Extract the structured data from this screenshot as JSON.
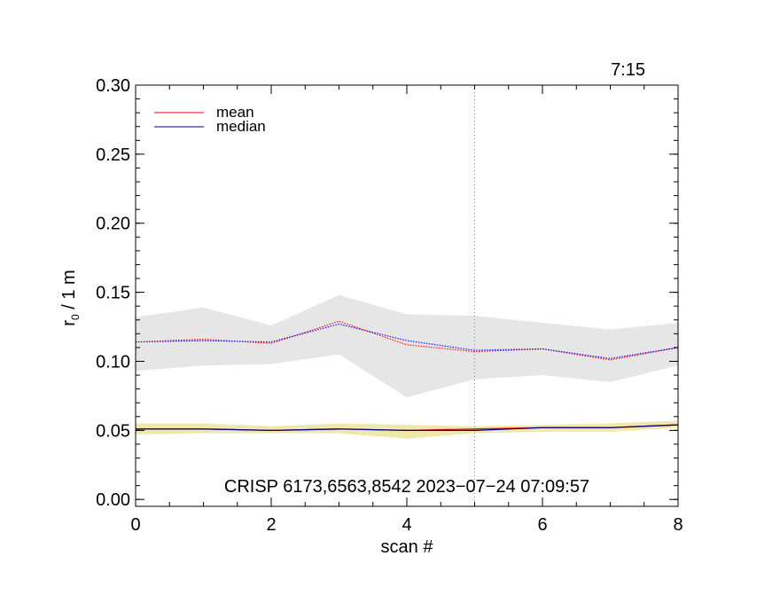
{
  "chart_data": {
    "type": "line",
    "corner_label": "7:15",
    "annotation": "CRISP 6173,6563,8542 2023−07−24 07:09:57",
    "xlabel": "scan #",
    "ylabel_main": "r",
    "ylabel_sub": "0",
    "ylabel_rest": " / 1 m",
    "xlim": [
      0,
      8
    ],
    "ylim": [
      -0.005,
      0.3
    ],
    "xticks": [
      0,
      2,
      4,
      6,
      8
    ],
    "xtick_labels": [
      "0",
      "2",
      "4",
      "6",
      "8"
    ],
    "yticks": [
      0.0,
      0.05,
      0.1,
      0.15,
      0.2,
      0.25,
      0.3
    ],
    "ytick_labels": [
      "0.00",
      "0.05",
      "0.10",
      "0.15",
      "0.20",
      "0.25",
      "0.30"
    ],
    "x_minor_step": 0.5,
    "y_minor_step": 0.01,
    "vline_x": 5,
    "grid": false,
    "legend_position": "top-left",
    "legend": [
      {
        "label": "mean",
        "color": "#ff0000"
      },
      {
        "label": "median",
        "color": "#00008b"
      }
    ],
    "x": [
      0,
      1,
      2,
      3,
      4,
      5,
      6,
      7,
      8
    ],
    "bands": [
      {
        "color": "#e6e6e6",
        "low": [
          0.093,
          0.097,
          0.098,
          0.105,
          0.074,
          0.087,
          0.09,
          0.085,
          0.097
        ],
        "high": [
          0.132,
          0.139,
          0.126,
          0.148,
          0.134,
          0.133,
          0.128,
          0.123,
          0.128
        ]
      },
      {
        "color": "#eee8aa",
        "low": [
          0.047,
          0.048,
          0.048,
          0.048,
          0.044,
          0.048,
          0.049,
          0.049,
          0.052
        ],
        "high": [
          0.055,
          0.055,
          0.053,
          0.055,
          0.054,
          0.053,
          0.054,
          0.055,
          0.057
        ]
      }
    ],
    "series": [
      {
        "name": "mean",
        "color": "#ff0000",
        "style": "dotted",
        "values": [
          0.114,
          0.116,
          0.113,
          0.129,
          0.112,
          0.107,
          0.109,
          0.101,
          0.11
        ]
      },
      {
        "name": "median",
        "color": "#0000ff",
        "style": "dotted",
        "values": [
          0.114,
          0.115,
          0.114,
          0.127,
          0.115,
          0.108,
          0.109,
          0.102,
          0.11
        ]
      },
      {
        "name": "mean",
        "color": "#ff0000",
        "style": "solid",
        "values": [
          0.051,
          0.051,
          0.05,
          0.051,
          0.05,
          0.051,
          0.052,
          0.052,
          0.054
        ]
      },
      {
        "name": "median",
        "color": "#00008b",
        "style": "solid",
        "values": [
          0.051,
          0.051,
          0.05,
          0.051,
          0.05,
          0.05,
          0.052,
          0.052,
          0.054
        ]
      }
    ]
  }
}
